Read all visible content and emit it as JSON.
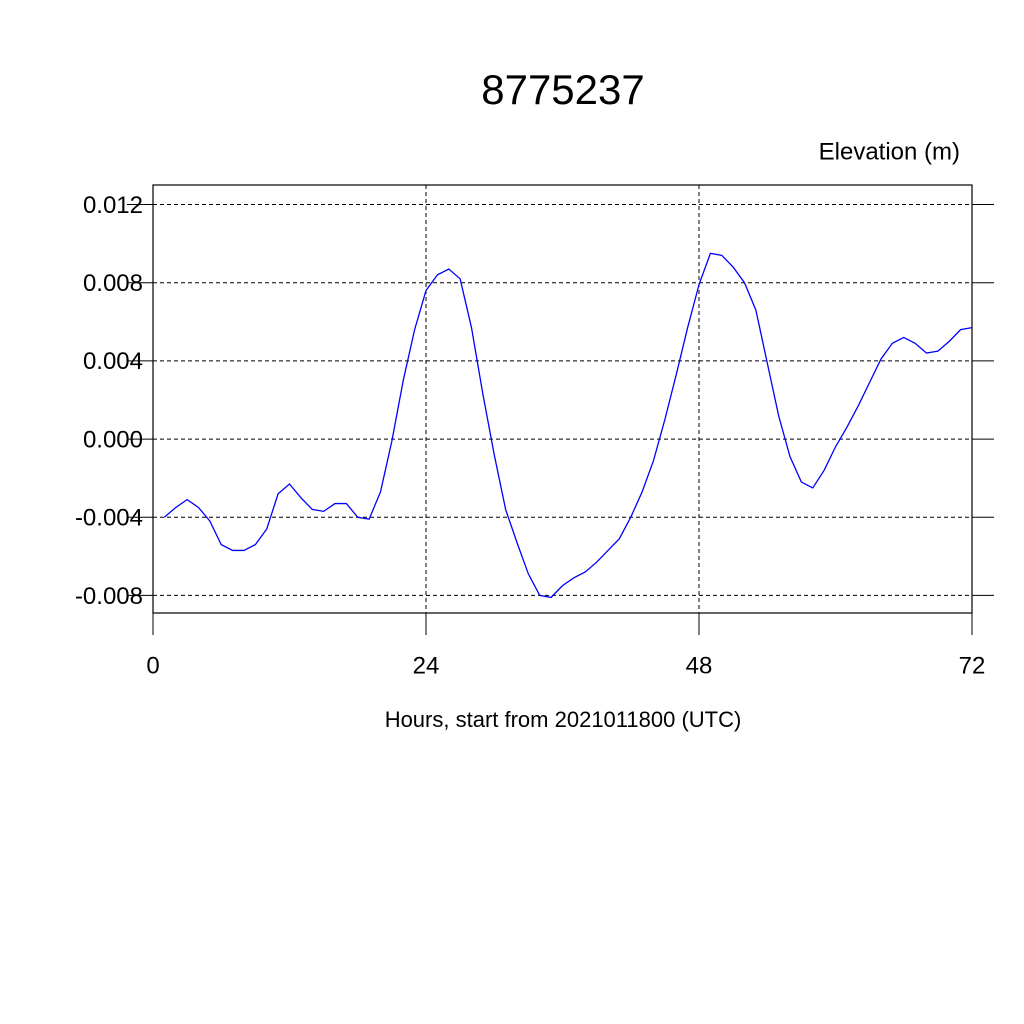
{
  "chart_data": {
    "type": "line",
    "title": "8775237",
    "subtitle": "Elevation (m)",
    "x_label": "Hours, start from 2021011800 (UTC)",
    "x": [
      1,
      2,
      3,
      4,
      5,
      6,
      7,
      8,
      9,
      10,
      11,
      12,
      13,
      14,
      15,
      16,
      17,
      18,
      19,
      20,
      21,
      22,
      23,
      24,
      25,
      26,
      27,
      28,
      29,
      30,
      31,
      32,
      33,
      34,
      35,
      36,
      37,
      38,
      39,
      40,
      41,
      42,
      43,
      44,
      45,
      46,
      47,
      48,
      49,
      50,
      51,
      52,
      53,
      54,
      55,
      56,
      57,
      58,
      59,
      60,
      61,
      62,
      63,
      64,
      65,
      66,
      67,
      68,
      69,
      70,
      71,
      72
    ],
    "series": [
      {
        "name": "8775237",
        "color": "#0000ff",
        "values": [
          -0.004,
          -0.0035,
          -0.0031,
          -0.0035,
          -0.0042,
          -0.0054,
          -0.0057,
          -0.0057,
          -0.0054,
          -0.0046,
          -0.0028,
          -0.0023,
          -0.003,
          -0.0036,
          -0.0037,
          -0.0033,
          -0.0033,
          -0.004,
          -0.0041,
          -0.0027,
          -0.0001,
          0.003,
          0.0056,
          0.0076,
          0.0084,
          0.0087,
          0.0082,
          0.0057,
          0.0023,
          -0.0008,
          -0.0036,
          -0.0053,
          -0.0069,
          -0.008,
          -0.0081,
          -0.0075,
          -0.0071,
          -0.0068,
          -0.0063,
          -0.0057,
          -0.0051,
          -0.004,
          -0.0027,
          -0.0011,
          0.001,
          0.0033,
          0.0057,
          0.0079,
          0.0095,
          0.0094,
          0.0088,
          0.008,
          0.0066,
          0.0039,
          0.0012,
          -0.0009,
          -0.0022,
          -0.0025,
          -0.0016,
          -0.0004,
          0.0006,
          0.0017,
          0.0029,
          0.0041,
          0.0049,
          0.0052,
          0.0049,
          0.0044,
          0.0045,
          0.005,
          0.0056,
          0.0057
        ]
      }
    ],
    "xlim": [
      0,
      72
    ],
    "xticks": [
      0,
      24,
      48,
      72
    ],
    "ylim": [
      -0.0089,
      0.013
    ],
    "yticks": [
      -0.008,
      -0.004,
      {
        "value": 0,
        "label": "0.000"
      },
      0.004,
      0.008,
      0.012
    ],
    "grid": true
  }
}
